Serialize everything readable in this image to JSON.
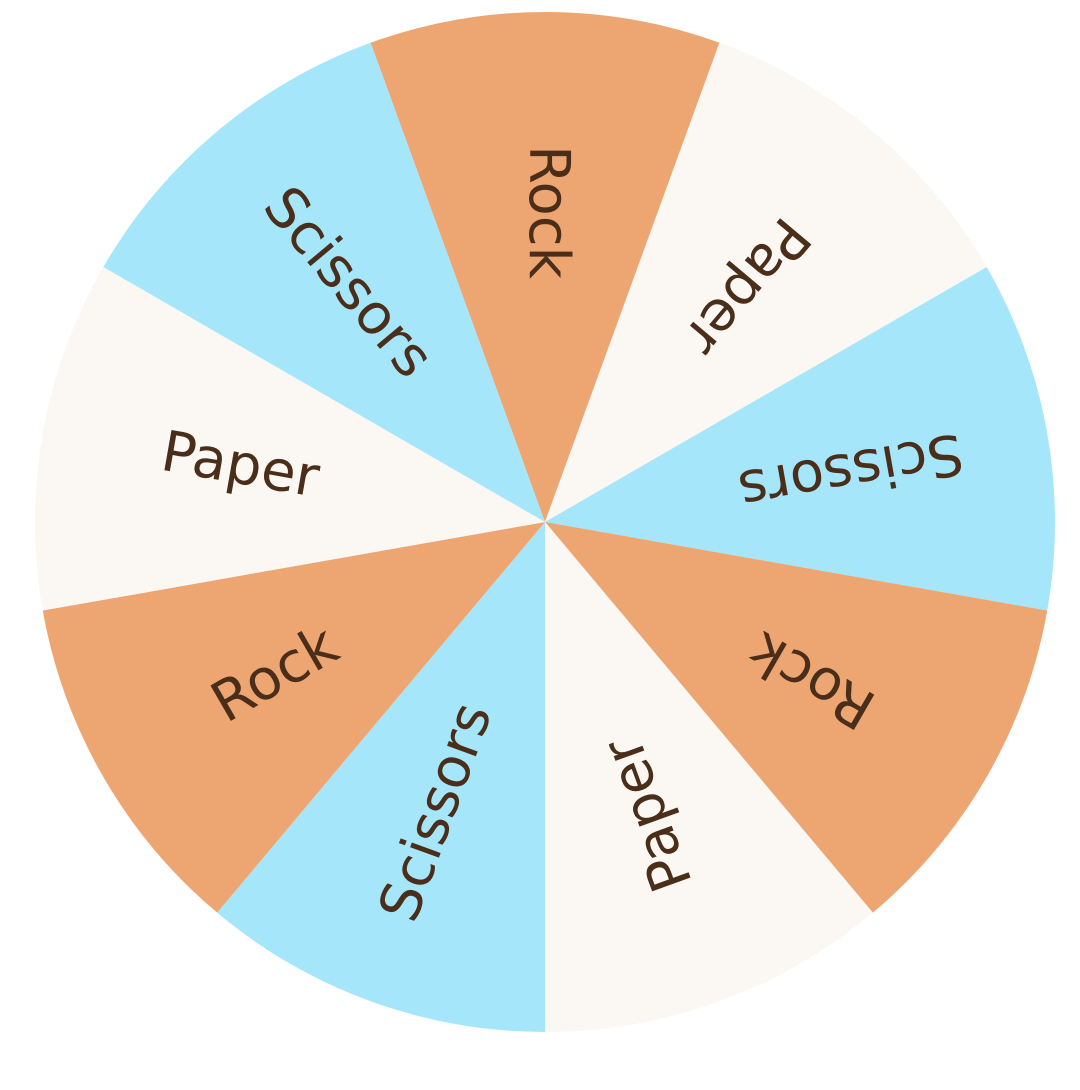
{
  "wheel": {
    "segments": [
      {
        "label": "Rock",
        "color": "#eda672"
      },
      {
        "label": "Paper",
        "color": "#fbf7f2"
      },
      {
        "label": "Scissors",
        "color": "#a6e6fb"
      },
      {
        "label": "Rock",
        "color": "#eda672"
      },
      {
        "label": "Paper",
        "color": "#fbf7f2"
      },
      {
        "label": "Scissors",
        "color": "#a6e6fb"
      },
      {
        "label": "Rock",
        "color": "#eda672"
      },
      {
        "label": "Paper",
        "color": "#fbf7f2"
      },
      {
        "label": "Scissors",
        "color": "#a6e6fb"
      }
    ],
    "text_color": "#4a2e1a"
  }
}
